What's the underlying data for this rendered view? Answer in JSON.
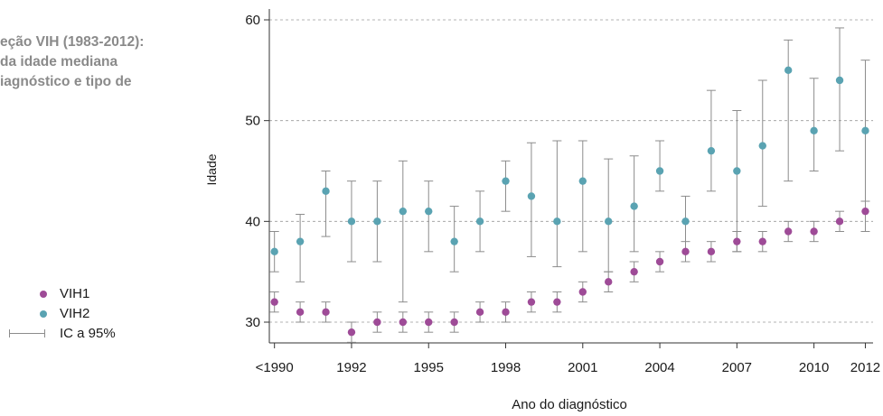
{
  "side_title": {
    "lines": [
      "eção VIH (1983-2012):",
      "da idade mediana",
      "iagnóstico e tipo de"
    ]
  },
  "legend": {
    "items": [
      {
        "label": "VIH1",
        "color": "#9e4b97"
      },
      {
        "label": "VIH2",
        "color": "#5aa3b2"
      },
      {
        "label": "IC a 95%",
        "color": "#8c8c8c"
      }
    ]
  },
  "chart_data": {
    "type": "scatter",
    "title": "",
    "xlabel": "Ano do diagnóstico",
    "ylabel": "Idade",
    "ylim": [
      28,
      60
    ],
    "y_ticks": [
      30,
      40,
      50,
      60
    ],
    "x_tick_labels": [
      {
        "x": 1989,
        "label": "<1990"
      },
      {
        "x": 1992,
        "label": "1992"
      },
      {
        "x": 1995,
        "label": "1995"
      },
      {
        "x": 1998,
        "label": "1998"
      },
      {
        "x": 2001,
        "label": "2001"
      },
      {
        "x": 2004,
        "label": "2004"
      },
      {
        "x": 2007,
        "label": "2007"
      },
      {
        "x": 2010,
        "label": "2010"
      },
      {
        "x": 2012,
        "label": "2012"
      }
    ],
    "xlim": [
      1988.8,
      2012.3
    ],
    "grid": "horizontal dashed",
    "legend": "left",
    "error_bars": "IC a 95%",
    "series": [
      {
        "name": "VIH1",
        "color": "#9e4b97",
        "x": [
          1989,
          1990,
          1991,
          1992,
          1993,
          1994,
          1995,
          1996,
          1997,
          1998,
          1999,
          2000,
          2001,
          2002,
          2003,
          2004,
          2005,
          2006,
          2007,
          2008,
          2009,
          2010,
          2011,
          2012
        ],
        "y": [
          32,
          31,
          31,
          29,
          30,
          30,
          30,
          30,
          31,
          31,
          32,
          32,
          33,
          34,
          35,
          36,
          37,
          37,
          38,
          38,
          39,
          39,
          40,
          41
        ],
        "ci_low": [
          31,
          30,
          30,
          28,
          29,
          29,
          29,
          29,
          30,
          30,
          31,
          31,
          32,
          33,
          34,
          35,
          36,
          36,
          37,
          37,
          38,
          38,
          39,
          39
        ],
        "ci_high": [
          33,
          32,
          32,
          30,
          31,
          31,
          31,
          31,
          32,
          32,
          33,
          33,
          34,
          35,
          36,
          37,
          38,
          38,
          39,
          39,
          40,
          40,
          41,
          42
        ]
      },
      {
        "name": "VIH2",
        "color": "#5aa3b2",
        "x": [
          1989,
          1990,
          1991,
          1992,
          1993,
          1994,
          1995,
          1996,
          1997,
          1998,
          1999,
          2000,
          2001,
          2002,
          2003,
          2004,
          2005,
          2006,
          2007,
          2008,
          2009,
          2010,
          2011,
          2012
        ],
        "y": [
          37,
          38,
          43,
          40,
          40,
          41,
          41,
          38,
          40,
          44,
          42.5,
          40,
          44,
          40,
          41.5,
          45,
          40,
          47,
          45,
          47.5,
          55,
          49,
          54,
          49
        ],
        "ci_low": [
          35,
          34,
          38.5,
          36,
          36,
          32,
          37,
          35,
          37,
          41,
          36.5,
          35.5,
          37,
          35,
          37,
          43,
          36,
          43,
          37,
          41.5,
          44,
          45,
          47,
          42
        ],
        "ci_high": [
          39,
          40.7,
          45,
          44,
          44,
          46,
          44,
          41.5,
          43,
          46,
          47.8,
          48,
          48,
          46.2,
          46.5,
          48,
          42.5,
          53,
          51,
          54,
          58,
          54.2,
          59.2,
          56
        ]
      }
    ]
  }
}
